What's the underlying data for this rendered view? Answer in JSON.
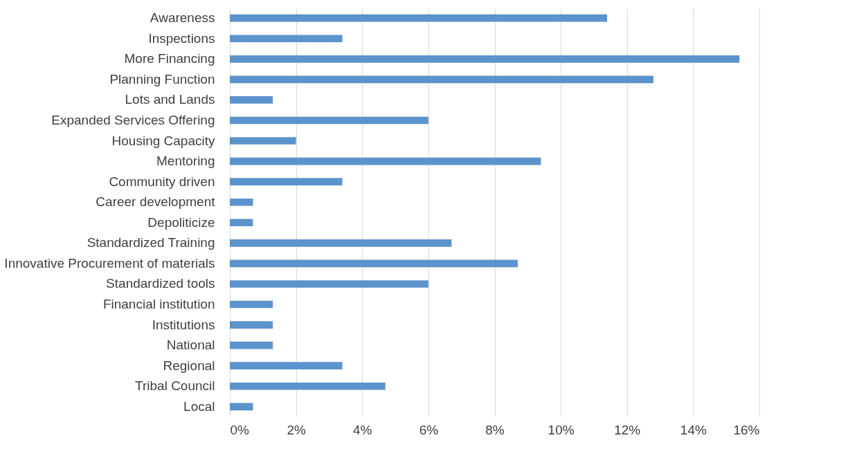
{
  "chart_data": {
    "type": "bar",
    "orientation": "horizontal",
    "categories": [
      "Awareness",
      "Inspections",
      "More Financing",
      "Planning Function",
      "Lots and Lands",
      "Expanded Services Offering",
      "Housing  Capacity",
      "Mentoring ",
      "Community driven",
      "Career development",
      "Depoliticize",
      "Standardized Training",
      "Innovative Procurement of materials ",
      "Standardized tools",
      "Financial institution",
      "Institutions",
      "National",
      "Regional",
      "Tribal Council",
      "Local"
    ],
    "values": [
      11.4,
      3.4,
      15.4,
      12.8,
      1.3,
      6.0,
      2.0,
      9.4,
      3.4,
      0.7,
      0.7,
      6.7,
      8.7,
      6.0,
      1.3,
      1.3,
      1.3,
      3.4,
      4.7,
      0.7
    ],
    "color": "#5b93cc",
    "xlim": [
      0,
      16
    ],
    "xticks": [
      {
        "value": 0,
        "label": "0%"
      },
      {
        "value": 2,
        "label": "2%"
      },
      {
        "value": 4,
        "label": "4%"
      },
      {
        "value": 6,
        "label": "6%"
      },
      {
        "value": 8,
        "label": "8%"
      },
      {
        "value": 10,
        "label": "10%"
      },
      {
        "value": 12,
        "label": "12%"
      },
      {
        "value": 14,
        "label": "14%"
      },
      {
        "value": 16,
        "label": "16%"
      }
    ],
    "grid": "x"
  }
}
